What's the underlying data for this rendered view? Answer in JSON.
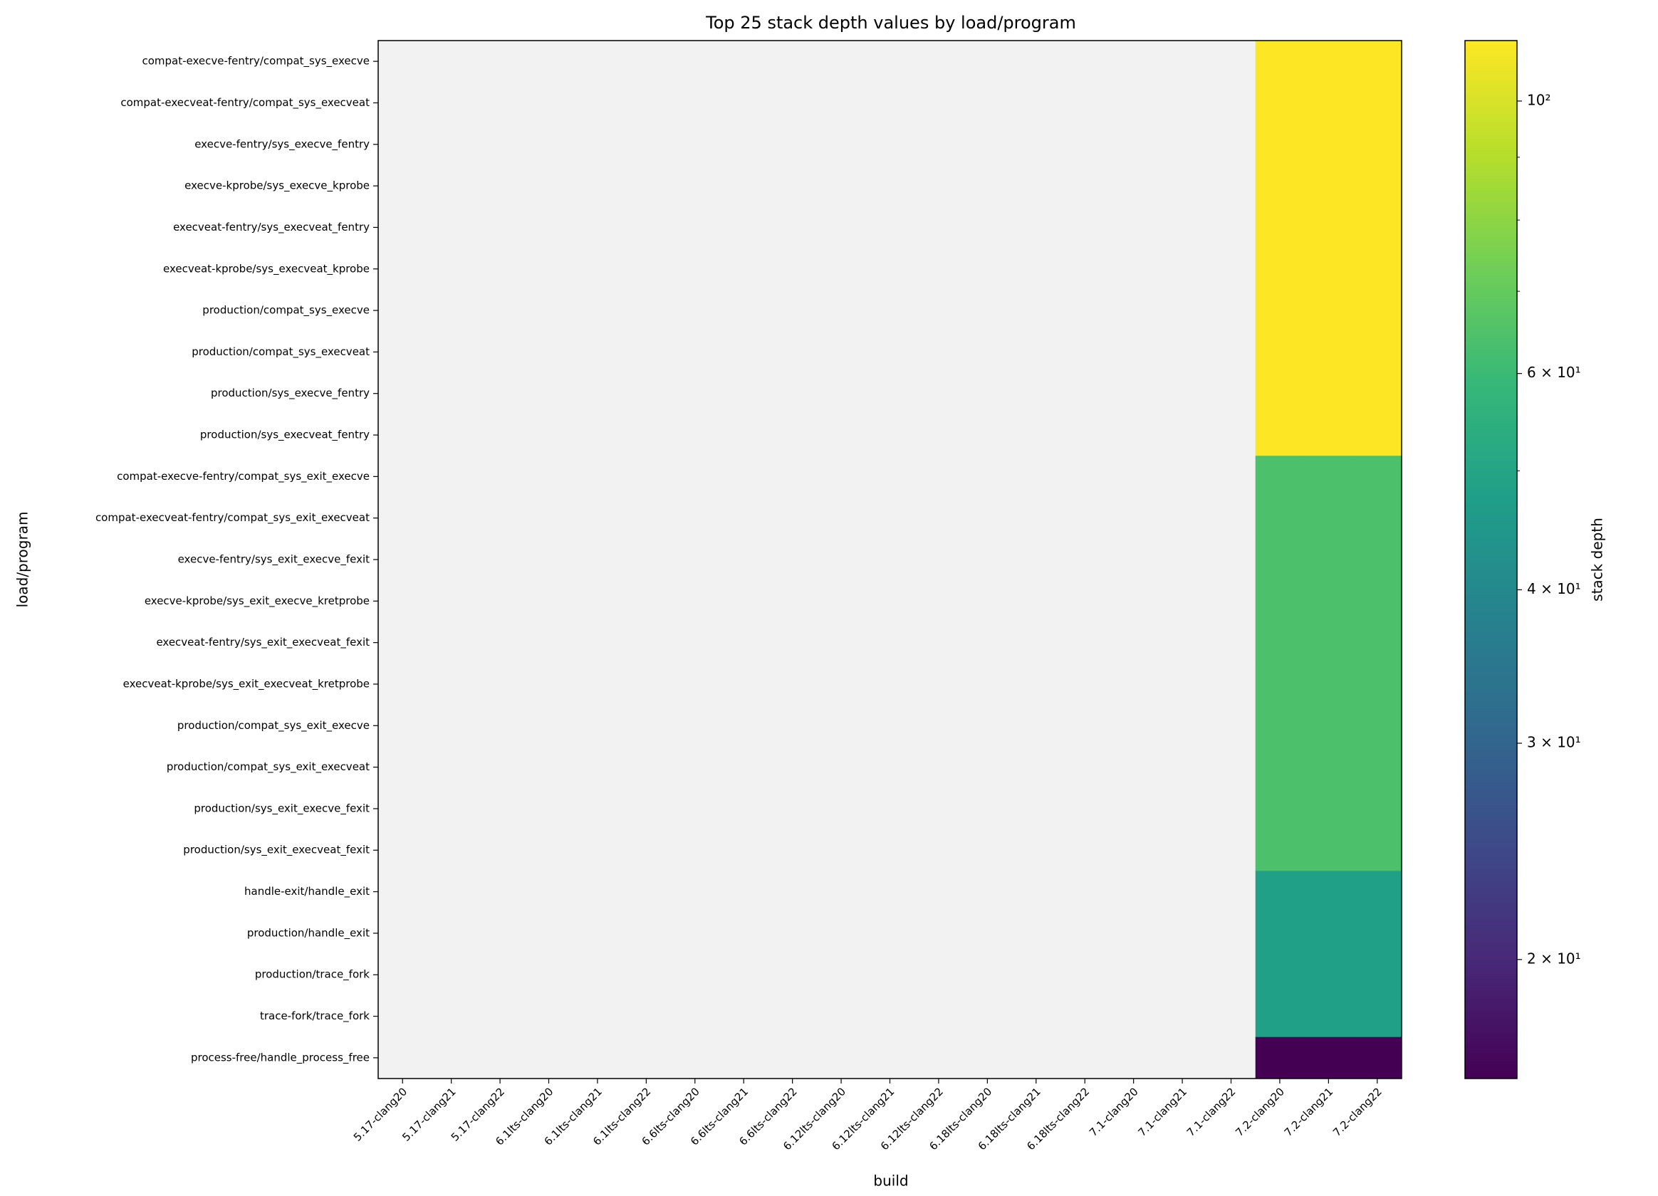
{
  "chart_data": {
    "type": "heatmap",
    "title": "Top 25 stack depth values by load/program",
    "x_label": "build",
    "y_label": "load/program",
    "x": [
      "5.17-clang20",
      "5.17-clang21",
      "5.17-clang22",
      "6.1lts-clang20",
      "6.1lts-clang21",
      "6.1lts-clang22",
      "6.6lts-clang20",
      "6.6lts-clang21",
      "6.6lts-clang22",
      "6.12lts-clang20",
      "6.12lts-clang21",
      "6.12lts-clang22",
      "6.18lts-clang20",
      "6.18lts-clang21",
      "6.18lts-clang22",
      "7.1-clang20",
      "7.1-clang21",
      "7.1-clang22",
      "7.2-clang20",
      "7.2-clang21",
      "7.2-clang22"
    ],
    "y": [
      "compat-execve-fentry/compat_sys_execve",
      "compat-execveat-fentry/compat_sys_execveat",
      "execve-fentry/sys_execve_fentry",
      "execve-kprobe/sys_execve_kprobe",
      "execveat-fentry/sys_execveat_fentry",
      "execveat-kprobe/sys_execveat_kprobe",
      "production/compat_sys_execve",
      "production/compat_sys_execveat",
      "production/sys_execve_fentry",
      "production/sys_execveat_fentry",
      "compat-execve-fentry/compat_sys_exit_execve",
      "compat-execveat-fentry/compat_sys_exit_execveat",
      "execve-fentry/sys_exit_execve_fexit",
      "execve-kprobe/sys_exit_execve_kretprobe",
      "execveat-fentry/sys_exit_execveat_fexit",
      "execveat-kprobe/sys_exit_execveat_kretprobe",
      "production/compat_sys_exit_execve",
      "production/compat_sys_exit_execveat",
      "production/sys_exit_execve_fexit",
      "production/sys_exit_execveat_fexit",
      "handle-exit/handle_exit",
      "production/handle_exit",
      "production/trace_fork",
      "trace-fork/trace_fork",
      "process-free/handle_process_free"
    ],
    "values": [
      [
        null,
        null,
        null,
        null,
        null,
        null,
        null,
        null,
        null,
        null,
        null,
        null,
        null,
        null,
        null,
        null,
        null,
        null,
        112,
        112,
        112
      ],
      [
        null,
        null,
        null,
        null,
        null,
        null,
        null,
        null,
        null,
        null,
        null,
        null,
        null,
        null,
        null,
        null,
        null,
        null,
        112,
        112,
        112
      ],
      [
        null,
        null,
        null,
        null,
        null,
        null,
        null,
        null,
        null,
        null,
        null,
        null,
        null,
        null,
        null,
        null,
        null,
        null,
        112,
        112,
        112
      ],
      [
        null,
        null,
        null,
        null,
        null,
        null,
        null,
        null,
        null,
        null,
        null,
        null,
        null,
        null,
        null,
        null,
        null,
        null,
        112,
        112,
        112
      ],
      [
        null,
        null,
        null,
        null,
        null,
        null,
        null,
        null,
        null,
        null,
        null,
        null,
        null,
        null,
        null,
        null,
        null,
        null,
        112,
        112,
        112
      ],
      [
        null,
        null,
        null,
        null,
        null,
        null,
        null,
        null,
        null,
        null,
        null,
        null,
        null,
        null,
        null,
        null,
        null,
        null,
        112,
        112,
        112
      ],
      [
        null,
        null,
        null,
        null,
        null,
        null,
        null,
        null,
        null,
        null,
        null,
        null,
        null,
        null,
        null,
        null,
        null,
        null,
        112,
        112,
        112
      ],
      [
        null,
        null,
        null,
        null,
        null,
        null,
        null,
        null,
        null,
        null,
        null,
        null,
        null,
        null,
        null,
        null,
        null,
        null,
        112,
        112,
        112
      ],
      [
        null,
        null,
        null,
        null,
        null,
        null,
        null,
        null,
        null,
        null,
        null,
        null,
        null,
        null,
        null,
        null,
        null,
        null,
        112,
        112,
        112
      ],
      [
        null,
        null,
        null,
        null,
        null,
        null,
        null,
        null,
        null,
        null,
        null,
        null,
        null,
        null,
        null,
        null,
        null,
        null,
        112,
        112,
        112
      ],
      [
        null,
        null,
        null,
        null,
        null,
        null,
        null,
        null,
        null,
        null,
        null,
        null,
        null,
        null,
        null,
        null,
        null,
        null,
        64,
        64,
        64
      ],
      [
        null,
        null,
        null,
        null,
        null,
        null,
        null,
        null,
        null,
        null,
        null,
        null,
        null,
        null,
        null,
        null,
        null,
        null,
        64,
        64,
        64
      ],
      [
        null,
        null,
        null,
        null,
        null,
        null,
        null,
        null,
        null,
        null,
        null,
        null,
        null,
        null,
        null,
        null,
        null,
        null,
        64,
        64,
        64
      ],
      [
        null,
        null,
        null,
        null,
        null,
        null,
        null,
        null,
        null,
        null,
        null,
        null,
        null,
        null,
        null,
        null,
        null,
        null,
        64,
        64,
        64
      ],
      [
        null,
        null,
        null,
        null,
        null,
        null,
        null,
        null,
        null,
        null,
        null,
        null,
        null,
        null,
        null,
        null,
        null,
        null,
        64,
        64,
        64
      ],
      [
        null,
        null,
        null,
        null,
        null,
        null,
        null,
        null,
        null,
        null,
        null,
        null,
        null,
        null,
        null,
        null,
        null,
        null,
        64,
        64,
        64
      ],
      [
        null,
        null,
        null,
        null,
        null,
        null,
        null,
        null,
        null,
        null,
        null,
        null,
        null,
        null,
        null,
        null,
        null,
        null,
        64,
        64,
        64
      ],
      [
        null,
        null,
        null,
        null,
        null,
        null,
        null,
        null,
        null,
        null,
        null,
        null,
        null,
        null,
        null,
        null,
        null,
        null,
        64,
        64,
        64
      ],
      [
        null,
        null,
        null,
        null,
        null,
        null,
        null,
        null,
        null,
        null,
        null,
        null,
        null,
        null,
        null,
        null,
        null,
        null,
        64,
        64,
        64
      ],
      [
        null,
        null,
        null,
        null,
        null,
        null,
        null,
        null,
        null,
        null,
        null,
        null,
        null,
        null,
        null,
        null,
        null,
        null,
        64,
        64,
        64
      ],
      [
        null,
        null,
        null,
        null,
        null,
        null,
        null,
        null,
        null,
        null,
        null,
        null,
        null,
        null,
        null,
        null,
        null,
        null,
        48,
        48,
        48
      ],
      [
        null,
        null,
        null,
        null,
        null,
        null,
        null,
        null,
        null,
        null,
        null,
        null,
        null,
        null,
        null,
        null,
        null,
        null,
        48,
        48,
        48
      ],
      [
        null,
        null,
        null,
        null,
        null,
        null,
        null,
        null,
        null,
        null,
        null,
        null,
        null,
        null,
        null,
        null,
        null,
        null,
        48,
        48,
        48
      ],
      [
        null,
        null,
        null,
        null,
        null,
        null,
        null,
        null,
        null,
        null,
        null,
        null,
        null,
        null,
        null,
        null,
        null,
        null,
        48,
        48,
        48
      ],
      [
        null,
        null,
        null,
        null,
        null,
        null,
        null,
        null,
        null,
        null,
        null,
        null,
        null,
        null,
        null,
        null,
        null,
        null,
        16,
        16,
        16
      ]
    ],
    "colormap": "viridis",
    "color_scale": "log",
    "missing_color": "#f2f2f2",
    "clim": [
      16,
      112
    ],
    "cbar_label": "stack depth",
    "cbar_ticks": [
      {
        "value": 20,
        "label": "2 × 10¹"
      },
      {
        "value": 30,
        "label": "3 × 10¹"
      },
      {
        "value": 40,
        "label": "4 × 10¹"
      },
      {
        "value": 60,
        "label": "6 × 10¹"
      },
      {
        "value": 100,
        "label": "10²"
      }
    ],
    "cbar_minor_ticks": [
      50,
      70,
      80,
      90
    ]
  }
}
